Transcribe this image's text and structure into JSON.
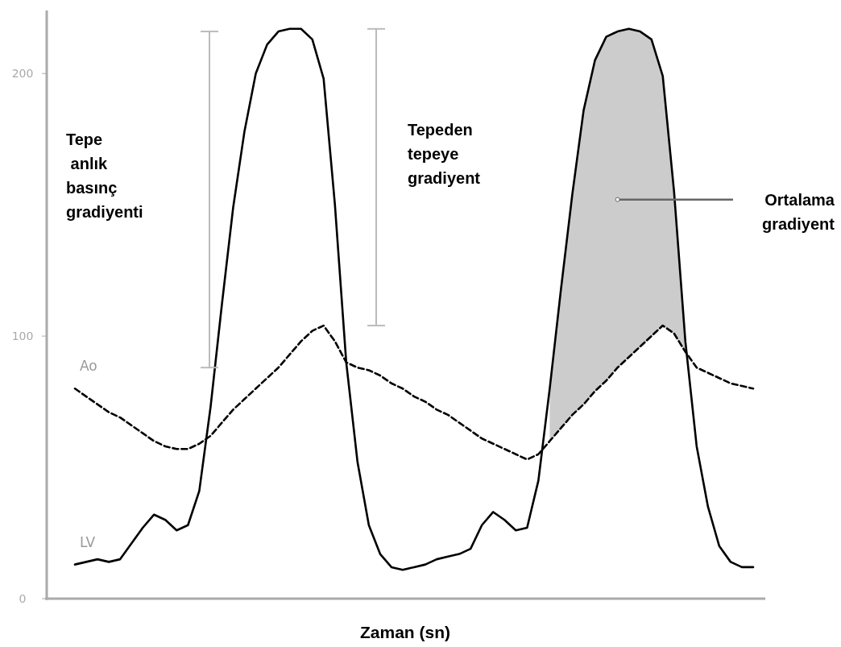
{
  "chart_data": {
    "type": "line",
    "xlabel": "Zaman (sn)",
    "categories": [
      null,
      null,
      null,
      null,
      null,
      null,
      null,
      null,
      null,
      null,
      null,
      null,
      null,
      null,
      null,
      null,
      null,
      null,
      null,
      null,
      null,
      null,
      null,
      null,
      null,
      null,
      null,
      null,
      null,
      null,
      null,
      null,
      null,
      null,
      null,
      null,
      null,
      null,
      null,
      null,
      null,
      null,
      null,
      null,
      null,
      null,
      null,
      null,
      null,
      null,
      null,
      null,
      null,
      null,
      null,
      null,
      null,
      null,
      null,
      null,
      null
    ],
    "ylim": [
      0,
      224
    ],
    "yticks": [
      0,
      100,
      200
    ],
    "legend": false,
    "series": [
      {
        "name": "Ao",
        "color": "#000000",
        "line_style": "dashed",
        "values": [
          80,
          77,
          74,
          71,
          69,
          66,
          63,
          60,
          58,
          57,
          57,
          59,
          62,
          67,
          72,
          76,
          80,
          84,
          88,
          93,
          98,
          102,
          104,
          98,
          90,
          88,
          87,
          85,
          82,
          80,
          77,
          75,
          72,
          70,
          67,
          64,
          61,
          59,
          57,
          55,
          53,
          55,
          60,
          65,
          70,
          74,
          79,
          83,
          88,
          92,
          96,
          100,
          104,
          101,
          94,
          88,
          86,
          84,
          82,
          81,
          80
        ]
      },
      {
        "name": "LV",
        "color": "#000000",
        "line_style": "solid",
        "values": [
          13,
          14,
          15,
          14,
          15,
          21,
          27,
          32,
          30,
          26,
          28,
          41,
          73,
          112,
          149,
          178,
          200,
          211,
          216,
          217,
          217,
          213,
          198,
          150,
          90,
          52,
          28,
          17,
          12,
          11,
          12,
          13,
          15,
          16,
          17,
          19,
          28,
          33,
          30,
          26,
          27,
          45,
          80,
          118,
          154,
          186,
          205,
          214,
          216,
          217,
          216,
          213,
          199,
          155,
          98,
          58,
          35,
          20,
          14,
          12,
          12
        ],
        "lower": [
          null,
          null,
          null,
          null,
          null,
          null,
          null,
          null,
          null,
          null,
          null,
          null,
          null,
          null,
          null,
          null,
          null,
          null,
          null,
          null,
          null,
          null,
          null,
          null,
          null,
          null,
          null,
          null,
          null,
          null,
          null,
          null,
          null,
          null,
          null,
          null,
          null,
          null,
          null,
          null,
          null,
          null,
          60,
          65,
          70,
          74,
          79,
          83,
          88,
          92,
          96,
          100,
          104,
          101,
          94,
          null,
          null,
          null,
          null,
          null,
          null
        ],
        "upper": [
          null,
          null,
          null,
          null,
          null,
          null,
          null,
          null,
          null,
          null,
          null,
          null,
          null,
          null,
          null,
          null,
          null,
          null,
          null,
          null,
          null,
          null,
          null,
          null,
          null,
          null,
          null,
          null,
          null,
          null,
          null,
          null,
          null,
          null,
          null,
          null,
          null,
          null,
          null,
          null,
          null,
          null,
          80,
          118,
          154,
          186,
          205,
          214,
          216,
          217,
          216,
          213,
          199,
          155,
          98,
          null,
          null,
          null,
          null,
          null,
          null
        ]
      }
    ],
    "annotations": [
      "Tepe\n anlık\nbasınç\ngradiyenti",
      "Tepeden\ntepeye\ngradiyent",
      "Ortalama\ngradiyent"
    ]
  }
}
